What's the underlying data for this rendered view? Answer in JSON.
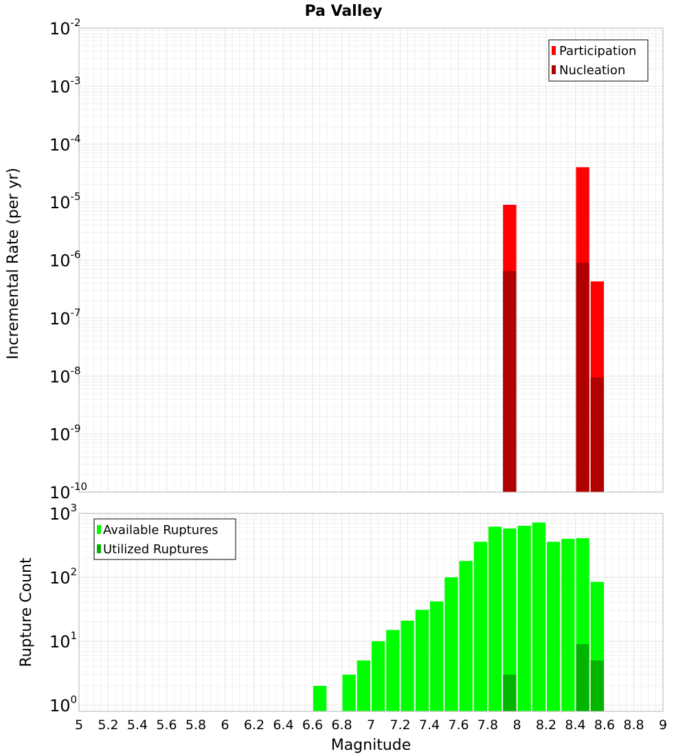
{
  "colors": {
    "participation": "#ff0000",
    "nucleation": "#b00000",
    "available": "#00ff00",
    "utilized": "#00b400",
    "grid": "#e6e6e6",
    "frame": "#b0b0b0"
  },
  "chart_data": [
    {
      "type": "bar",
      "title": "Pa Valley",
      "xlabel": "",
      "ylabel": "Incremental Rate (per yr)",
      "yscale": "log",
      "ylim": [
        1e-10,
        0.01
      ],
      "xlim": [
        5,
        9
      ],
      "bar_width": 0.1,
      "grid": true,
      "legend_position": "top-right",
      "series": [
        {
          "name": "Participation",
          "x": [
            7.95,
            8.45,
            8.55
          ],
          "values": [
            9e-06,
            4e-05,
            4.3e-07
          ]
        },
        {
          "name": "Nucleation",
          "x": [
            7.95,
            8.45,
            8.55
          ],
          "values": [
            6.5e-07,
            9e-07,
            9.5e-09
          ]
        }
      ]
    },
    {
      "type": "bar",
      "xlabel": "Magnitude",
      "ylabel": "Rupture Count",
      "yscale": "log",
      "ylim": [
        0.8,
        1000
      ],
      "xlim": [
        5,
        9
      ],
      "bar_width": 0.1,
      "grid": true,
      "legend_position": "top-left",
      "series": [
        {
          "name": "Available Ruptures",
          "x": [
            6.65,
            6.85,
            6.95,
            7.05,
            7.15,
            7.25,
            7.35,
            7.45,
            7.55,
            7.65,
            7.75,
            7.85,
            7.95,
            8.05,
            8.15,
            8.25,
            8.35,
            8.45,
            8.55
          ],
          "values": [
            2,
            3,
            5,
            10,
            15,
            21,
            31,
            42,
            100,
            180,
            360,
            620,
            580,
            640,
            720,
            360,
            400,
            410,
            85
          ]
        },
        {
          "name": "Utilized Ruptures",
          "x": [
            7.95,
            8.45,
            8.55
          ],
          "values": [
            3,
            9,
            5
          ]
        }
      ]
    }
  ],
  "x_ticks": [
    "5",
    "5.2",
    "5.4",
    "5.6",
    "5.8",
    "6",
    "6.2",
    "6.4",
    "6.6",
    "6.8",
    "7",
    "7.2",
    "7.4",
    "7.6",
    "7.8",
    "8",
    "8.2",
    "8.4",
    "8.6",
    "8.8",
    "9"
  ],
  "top_y_ticks": [
    {
      "base": "10",
      "exp": "-10"
    },
    {
      "base": "10",
      "exp": "-9"
    },
    {
      "base": "10",
      "exp": "-8"
    },
    {
      "base": "10",
      "exp": "-7"
    },
    {
      "base": "10",
      "exp": "-6"
    },
    {
      "base": "10",
      "exp": "-5"
    },
    {
      "base": "10",
      "exp": "-4"
    },
    {
      "base": "10",
      "exp": "-3"
    },
    {
      "base": "10",
      "exp": "-2"
    }
  ],
  "bottom_y_ticks": [
    {
      "base": "10",
      "exp": "0"
    },
    {
      "base": "10",
      "exp": "1"
    },
    {
      "base": "10",
      "exp": "2"
    },
    {
      "base": "10",
      "exp": "3"
    }
  ]
}
